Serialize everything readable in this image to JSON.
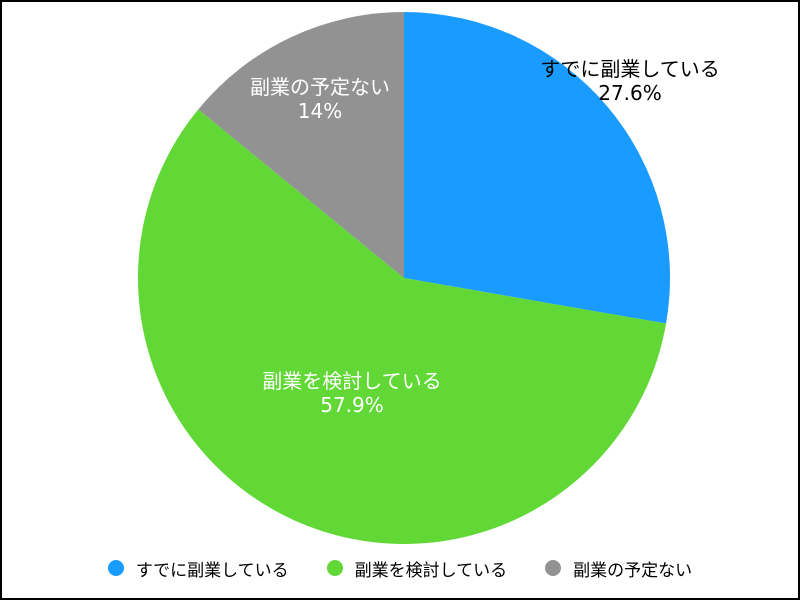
{
  "chart_data": {
    "type": "pie",
    "categories": [
      "すでに副業している",
      "副業を検討している",
      "副業の予定ない"
    ],
    "values": [
      27.6,
      57.9,
      14
    ],
    "value_labels": [
      "27.6%",
      "57.9%",
      "14%"
    ],
    "colors": [
      "#1a9bff",
      "#61d836",
      "#929292"
    ],
    "label_colors": [
      "#000000",
      "#ffffff",
      "#ffffff"
    ],
    "start": "12 o'clock",
    "direction": "clockwise",
    "legend_position": "bottom"
  },
  "legend": {
    "items": [
      {
        "label": "すでに副業している",
        "color": "#1a9bff"
      },
      {
        "label": "副業を検討している",
        "color": "#61d836"
      },
      {
        "label": "副業の予定ない",
        "color": "#929292"
      }
    ]
  }
}
